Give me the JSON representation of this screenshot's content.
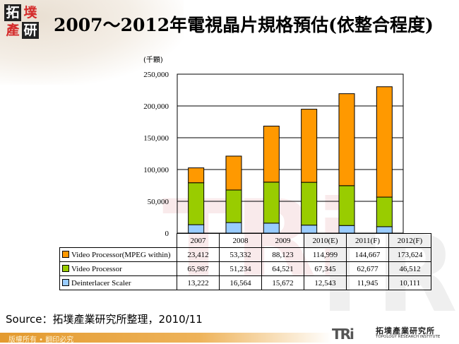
{
  "header": {
    "logo_chars": [
      "拓",
      "墣",
      "產",
      "研"
    ],
    "title": "2007～2012年電視晶片規格預估(依整合程度)"
  },
  "chart_data": {
    "type": "bar",
    "stacked": true,
    "title": "2007～2012年電視晶片規格預估(依整合程度)",
    "unit_label": "(千顆)",
    "xlabel": "",
    "ylabel": "(千顆)",
    "ylim": [
      0,
      250000
    ],
    "yticks": [
      0,
      50000,
      100000,
      150000,
      200000,
      250000
    ],
    "ytick_labels": [
      "0",
      "50,000",
      "100,000",
      "150,000",
      "200,000",
      "250,000"
    ],
    "grid": true,
    "categories": [
      "2007",
      "2008",
      "2009",
      "2010(E)",
      "2011(F)",
      "2012(F)"
    ],
    "series": [
      {
        "name": "Deinterlacer Scaler",
        "color": "#99ccff",
        "values": [
          13222,
          16564,
          15672,
          12543,
          11945,
          10111
        ],
        "labels": [
          "13,222",
          "16,564",
          "15,672",
          "12,543",
          "11,945",
          "10,111"
        ]
      },
      {
        "name": "Video Processor",
        "color": "#99cc00",
        "values": [
          65987,
          51234,
          64521,
          67345,
          62677,
          46512
        ],
        "labels": [
          "65,987",
          "51,234",
          "64,521",
          "67,345",
          "62,677",
          "46,512"
        ]
      },
      {
        "name": "Video Processor(MPEG within)",
        "color": "#ff9900",
        "values": [
          23412,
          53332,
          88123,
          114999,
          144667,
          173624
        ],
        "labels": [
          "23,412",
          "53,332",
          "88,123",
          "114,999",
          "144,667",
          "173,624"
        ]
      }
    ],
    "legend": "data-table-below",
    "table_row_order": [
      "Video Processor(MPEG within)",
      "Video Processor",
      "Deinterlacer Scaler"
    ]
  },
  "source": "Source：拓墣產業研究所整理，2010/11",
  "footer": {
    "copyright": "版權所有 • 翻印必究",
    "brand_mark": "TRi",
    "brand_cn": "拓墣產業研究所",
    "brand_en": "TOPOLOGY RESEARCH INSTITUTE"
  }
}
